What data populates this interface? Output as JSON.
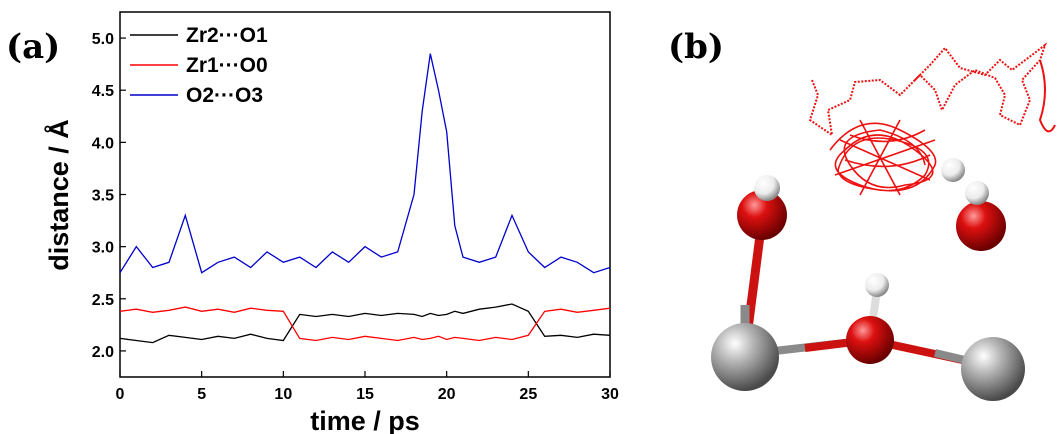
{
  "panel_a_label": "(a)",
  "panel_b_label": "(b)",
  "chart_data": {
    "type": "line",
    "xlabel": "time / ps",
    "ylabel": "distance / Å",
    "xlim": [
      0,
      30
    ],
    "ylim": [
      1.75,
      5.25
    ],
    "x_ticks": [
      "0",
      "5",
      "10",
      "15",
      "20",
      "25",
      "30"
    ],
    "y_ticks": [
      "2.0",
      "2.5",
      "3.0",
      "3.5",
      "4.0",
      "4.5",
      "5.0"
    ],
    "legend_position": "top-left",
    "grid": false,
    "x": [
      0,
      1,
      2,
      3,
      4,
      5,
      6,
      7,
      8,
      9,
      10,
      11,
      12,
      13,
      14,
      15,
      16,
      17,
      18,
      18.5,
      19,
      19.5,
      20,
      20.5,
      21,
      22,
      23,
      24,
      25,
      26,
      27,
      28,
      29,
      30
    ],
    "series": [
      {
        "name": "Zr2···O1",
        "color": "#000000",
        "values": [
          2.12,
          2.1,
          2.08,
          2.15,
          2.13,
          2.11,
          2.14,
          2.12,
          2.16,
          2.12,
          2.1,
          2.35,
          2.33,
          2.35,
          2.33,
          2.36,
          2.34,
          2.36,
          2.35,
          2.33,
          2.36,
          2.34,
          2.35,
          2.38,
          2.36,
          2.4,
          2.42,
          2.45,
          2.38,
          2.14,
          2.15,
          2.13,
          2.16,
          2.15
        ]
      },
      {
        "name": "Zr1···O0",
        "color": "#ff0000",
        "values": [
          2.38,
          2.4,
          2.37,
          2.39,
          2.42,
          2.38,
          2.4,
          2.37,
          2.41,
          2.39,
          2.38,
          2.12,
          2.1,
          2.13,
          2.11,
          2.14,
          2.12,
          2.1,
          2.13,
          2.11,
          2.12,
          2.14,
          2.11,
          2.13,
          2.12,
          2.1,
          2.13,
          2.11,
          2.15,
          2.38,
          2.4,
          2.37,
          2.39,
          2.41
        ]
      },
      {
        "name": "O2···O3",
        "color": "#0000cc",
        "values": [
          2.75,
          3.0,
          2.8,
          2.85,
          3.3,
          2.75,
          2.85,
          2.9,
          2.8,
          2.95,
          2.85,
          2.9,
          2.8,
          2.95,
          2.85,
          3.0,
          2.9,
          2.95,
          3.5,
          4.3,
          4.85,
          4.5,
          4.1,
          3.2,
          2.9,
          2.85,
          2.9,
          3.3,
          2.95,
          2.8,
          2.9,
          2.85,
          2.75,
          2.8
        ]
      }
    ]
  },
  "colors": {
    "atom_oxygen": "#cc0000",
    "atom_zirconium": "#9a9a9a",
    "atom_hydrogen": "#f2f2f2",
    "bond_red": "#cc1111",
    "bond_gray": "#8a8a8a",
    "trajectory": "#ee1111"
  }
}
